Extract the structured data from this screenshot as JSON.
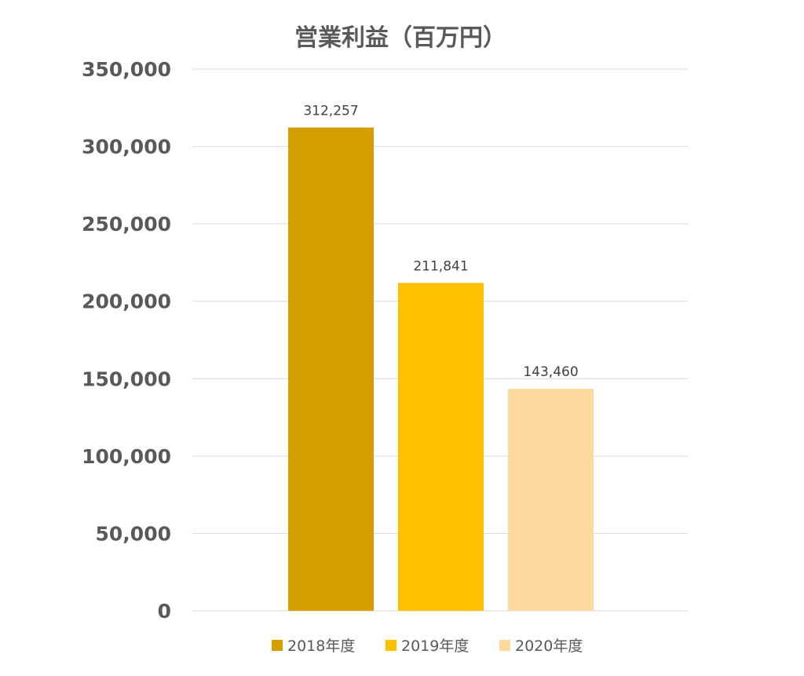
{
  "chart_data": {
    "type": "bar",
    "title": "営業利益（百万円）",
    "categories": [
      "2018年度",
      "2019年度",
      "2020年度"
    ],
    "values": [
      312257,
      211841,
      143460
    ],
    "data_labels": [
      "312,257",
      "211,841",
      "143,460"
    ],
    "colors": [
      "#D4A000",
      "#FFC000",
      "#FDD9A0"
    ],
    "ylim": [
      0,
      350000
    ],
    "y_ticks": [
      0,
      50000,
      100000,
      150000,
      200000,
      250000,
      300000,
      350000
    ],
    "y_tick_labels": [
      "0",
      "50,000",
      "100,000",
      "150,000",
      "200,000",
      "250,000",
      "300,000",
      "350,000"
    ],
    "grid": true,
    "legend_position": "bottom",
    "xlabel": "",
    "ylabel": ""
  }
}
